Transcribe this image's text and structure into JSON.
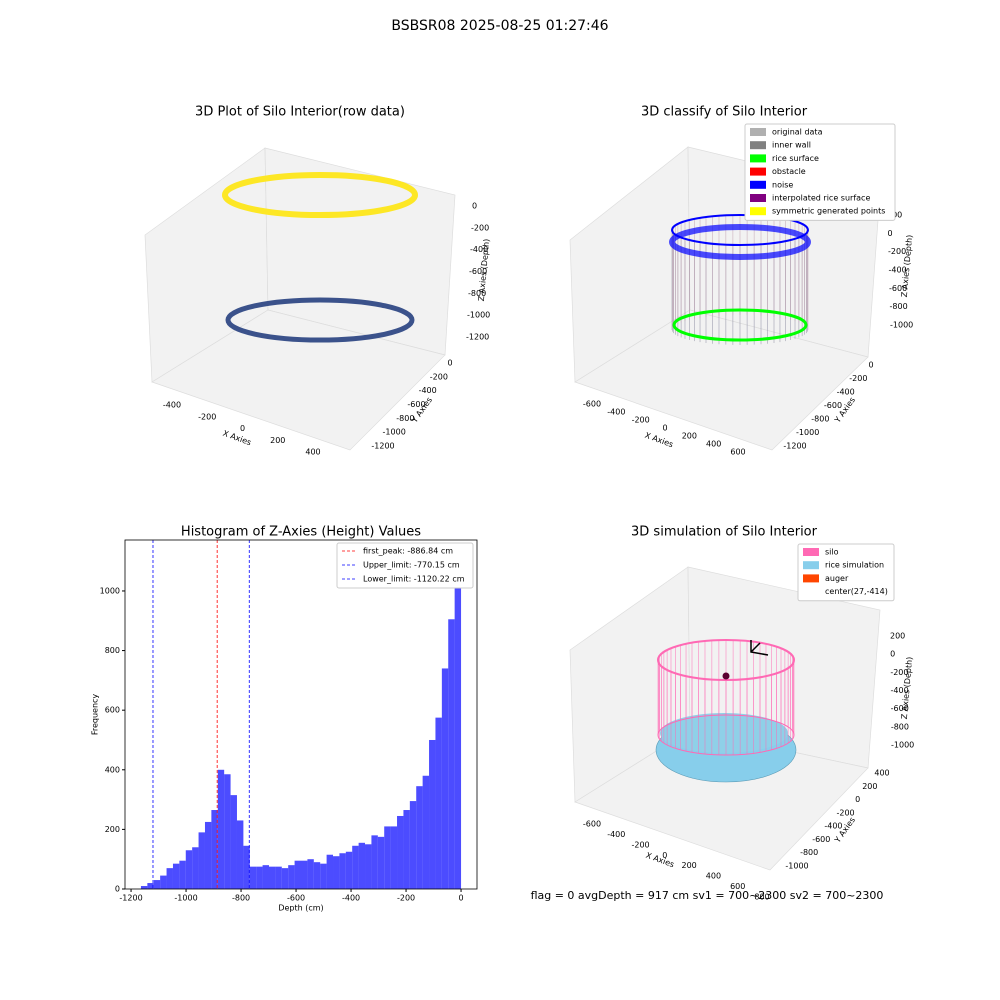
{
  "title": "BSBSR08 2025-08-25 01:27:46",
  "annotation": "flag = 0     avgDepth = 917 cm  sv1 = 700~2300  sv2 = 700~2300",
  "chart_data": [
    {
      "type": "scatter3d",
      "title": "3D Plot of Silo Interior(row data)",
      "xlabel": "X Axies",
      "ylabel": "Y Axies",
      "zlabel": "Z Axies (Depth)",
      "xticks": [
        -400,
        -200,
        0,
        200,
        400
      ],
      "yticks": [
        0,
        -200,
        -400,
        -600,
        -800,
        -1000,
        -1200
      ],
      "zticks": [
        0,
        -200,
        -400,
        -600,
        -800,
        -1000,
        -1200
      ]
    },
    {
      "type": "scatter3d",
      "title": "3D classify of Silo Interior",
      "xlabel": "X Axies",
      "ylabel": "Y Axies",
      "zlabel": "Z Axies (Depth)",
      "xticks": [
        -600,
        -400,
        -200,
        0,
        200,
        400,
        600
      ],
      "yticks": [
        0,
        -200,
        -400,
        -600,
        -800,
        -1000,
        -1200
      ],
      "zticks": [
        200,
        0,
        -200,
        -400,
        -600,
        -800,
        -1000
      ],
      "legend": [
        {
          "name": "original data",
          "color": "#b0b0b0"
        },
        {
          "name": "inner wall",
          "color": "#808080"
        },
        {
          "name": "rice surface",
          "color": "#00ff00"
        },
        {
          "name": "obstacle",
          "color": "#ff0000"
        },
        {
          "name": "noise",
          "color": "#0000ff"
        },
        {
          "name": "interpolated rice surface",
          "color": "#800080"
        },
        {
          "name": "symmetric generated points",
          "color": "#ffff00"
        }
      ]
    },
    {
      "type": "histogram",
      "title": "Histogram of Z-Axies (Height) Values",
      "xlabel": "Depth (cm)",
      "ylabel": "Frequency",
      "color": "#0000ff",
      "bins": [
        -1164,
        -1140.7,
        -1117.4,
        -1094.2,
        -1070.9,
        -1047.6,
        -1024.3,
        -1001.0,
        -977.8,
        -954.5,
        -931.2,
        -907.9,
        -884.6,
        -861.4,
        -838.1,
        -814.8,
        -791.5,
        -768.2,
        -745.0,
        -721.7,
        -698.4,
        -675.1,
        -651.8,
        -628.6,
        -605.3,
        -582.0,
        -558.7,
        -535.4,
        -512.2,
        -488.9,
        -465.6,
        -442.3,
        -419.0,
        -395.8,
        -372.5,
        -349.2,
        -325.9,
        -302.6,
        -279.4,
        -256.1,
        -232.8,
        -209.5,
        -186.2,
        -163.0,
        -139.7,
        -116.4,
        -93.1,
        -69.8,
        -46.6,
        -23.3,
        0
      ],
      "values": [
        10,
        20,
        30,
        45,
        70,
        85,
        95,
        130,
        140,
        190,
        225,
        265,
        400,
        385,
        315,
        230,
        145,
        75,
        75,
        80,
        75,
        75,
        70,
        80,
        95,
        95,
        100,
        90,
        85,
        115,
        110,
        120,
        125,
        145,
        155,
        150,
        180,
        175,
        210,
        210,
        245,
        265,
        295,
        345,
        380,
        500,
        575,
        740,
        905,
        1115
      ],
      "xlim": [
        -1222,
        58
      ],
      "ylim": [
        0,
        1171
      ],
      "xticks": [
        -1200,
        -1000,
        -800,
        -600,
        -400,
        -200,
        0
      ],
      "yticks": [
        0,
        200,
        400,
        600,
        800,
        1000
      ],
      "vlines": [
        {
          "label": "first_peak: -886.84 cm",
          "value": -886.84,
          "color": "#ff0000"
        },
        {
          "label": "Upper_limit: -770.15 cm",
          "value": -770.15,
          "color": "#0000ff"
        },
        {
          "label": "Lower_limit: -1120.22 cm",
          "value": -1120.22,
          "color": "#0000ff"
        }
      ]
    },
    {
      "type": "surface3d",
      "title": "3D simulation of Silo Interior",
      "xlabel": "X Axies",
      "ylabel": "Y Axies",
      "zlabel": "Z Axies (Depth)",
      "xticks": [
        -600,
        -400,
        -200,
        0,
        200,
        400,
        600,
        800
      ],
      "yticks": [
        400,
        200,
        0,
        -200,
        -400,
        -600,
        -800,
        -1000
      ],
      "zticks": [
        200,
        0,
        -200,
        -400,
        -600,
        -800,
        -1000
      ],
      "legend": [
        {
          "name": "silo",
          "color": "#ff69b4"
        },
        {
          "name": "rice simulation",
          "color": "#87ceeb"
        },
        {
          "name": "auger",
          "color": "#ff4500"
        },
        {
          "name": "center(27,-414)"
        }
      ]
    }
  ]
}
